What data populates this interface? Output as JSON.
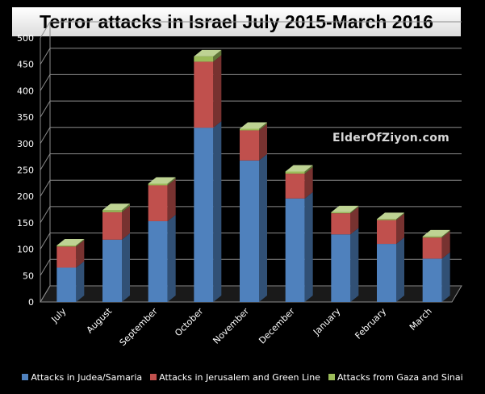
{
  "chart_data": {
    "type": "bar",
    "stacked": true,
    "style": "3d",
    "title": "Terror attacks in Israel July 2015-March 2016",
    "categories": [
      "July",
      "August",
      "September",
      "October",
      "November",
      "December",
      "January",
      "February",
      "March"
    ],
    "series": [
      {
        "name": "Attacks in Judea/Samaria",
        "color": "#4f81bd",
        "values": [
          65,
          118,
          153,
          330,
          268,
          196,
          128,
          110,
          82
        ]
      },
      {
        "name": "Attacks in Jerusalem and Green Line",
        "color": "#c0504d",
        "values": [
          40,
          52,
          68,
          125,
          57,
          47,
          40,
          45,
          40
        ]
      },
      {
        "name": "Attacks from Gaza and Sinai",
        "color": "#9bbb59",
        "values": [
          2,
          4,
          3,
          10,
          3,
          4,
          2,
          2,
          2
        ]
      }
    ],
    "y_ticks": [
      "0",
      "50",
      "100",
      "150",
      "200",
      "250",
      "300",
      "350",
      "400",
      "450",
      "500"
    ],
    "ylim": [
      0,
      500
    ],
    "grid": true,
    "legend_position": "bottom",
    "background": "#000000",
    "watermark": "ElderOfZiyon.com"
  }
}
